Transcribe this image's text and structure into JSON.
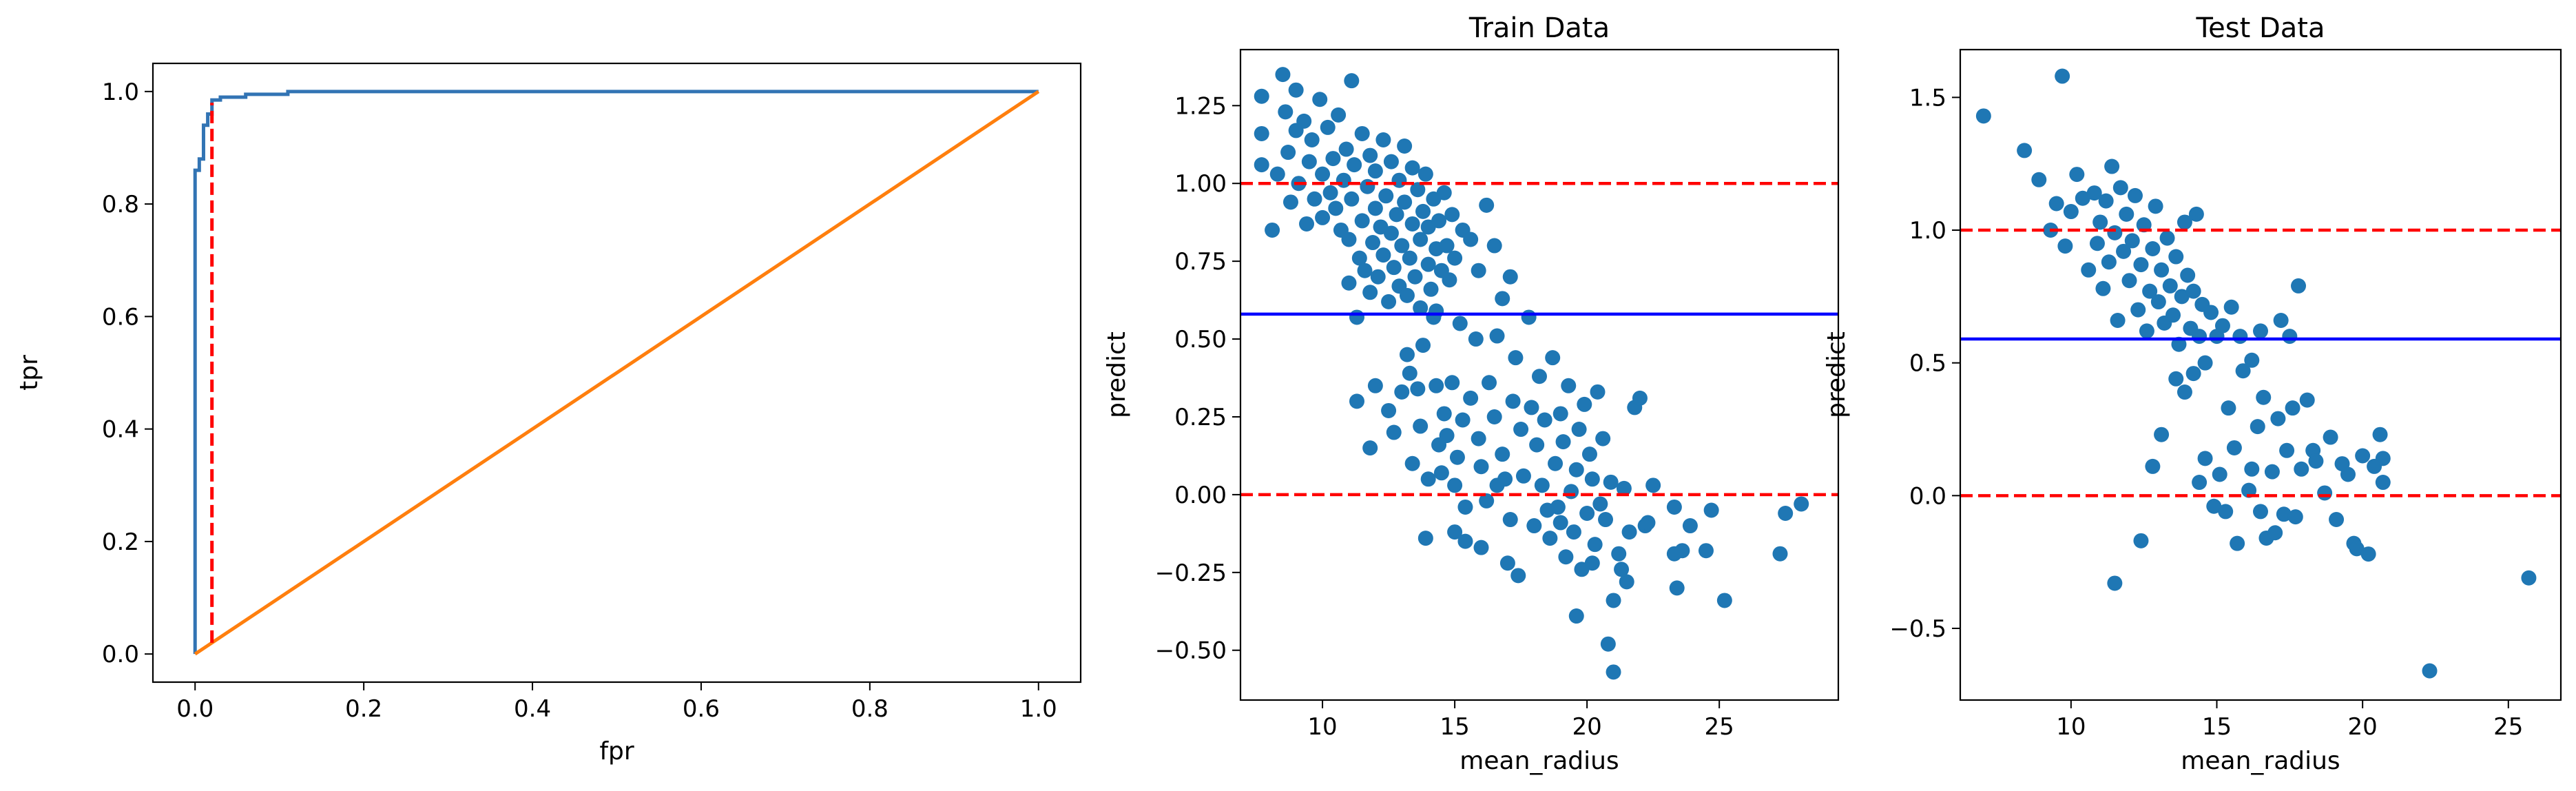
{
  "colors": {
    "roc_line": "#3274b4",
    "diagonal_line": "#ff7f0e",
    "red_dashed": "#ff0000",
    "blue_threshold": "#0000ff",
    "scatter_points": "#1f77b4"
  },
  "chart_data": [
    {
      "type": "line",
      "title": "",
      "xlabel": "fpr",
      "ylabel": "tpr",
      "xlim": [
        -0.05,
        1.05
      ],
      "ylim": [
        -0.05,
        1.05
      ],
      "xticks": [
        0.0,
        0.2,
        0.4,
        0.6,
        0.8,
        1.0
      ],
      "yticks": [
        0.0,
        0.2,
        0.4,
        0.6,
        0.8,
        1.0
      ],
      "xtick_labels": [
        "0.0",
        "0.2",
        "0.4",
        "0.6",
        "0.8",
        "1.0"
      ],
      "ytick_labels": [
        "0.0",
        "0.2",
        "0.4",
        "0.6",
        "0.8",
        "1.0"
      ],
      "grid": false,
      "series": [
        {
          "color": "#3274b4",
          "x": [
            0.0,
            0.0,
            0.005,
            0.005,
            0.01,
            0.01,
            0.015,
            0.015,
            0.02,
            0.02,
            0.03,
            0.03,
            0.06,
            0.06,
            0.11,
            0.11,
            1.0
          ],
          "y": [
            0.0,
            0.86,
            0.86,
            0.88,
            0.88,
            0.94,
            0.94,
            0.96,
            0.96,
            0.985,
            0.985,
            0.99,
            0.99,
            0.995,
            0.995,
            1.0,
            1.0
          ]
        },
        {
          "color": "#ff7f0e",
          "x": [
            0.0,
            1.0
          ],
          "y": [
            0.0,
            1.0
          ]
        }
      ],
      "annotations": [
        {
          "type": "vline",
          "style": "dashed",
          "color": "#ff0000",
          "x": 0.02,
          "y_from": 0.02,
          "y_to": 0.98
        }
      ]
    },
    {
      "type": "scatter",
      "title": "Train Data",
      "xlabel": "mean_radius",
      "ylabel": "predict",
      "xlim": [
        6.9,
        29.5
      ],
      "ylim": [
        -0.66,
        1.43
      ],
      "xticks": [
        10,
        15,
        20,
        25
      ],
      "yticks": [
        -0.5,
        -0.25,
        0.0,
        0.25,
        0.5,
        0.75,
        1.0,
        1.25
      ],
      "xtick_labels": [
        "10",
        "15",
        "20",
        "25"
      ],
      "ytick_labels": [
        "−0.50",
        "−0.25",
        "0.00",
        "0.25",
        "0.50",
        "0.75",
        "1.00",
        "1.25"
      ],
      "grid": false,
      "hlines": [
        {
          "y": 1.0,
          "style": "dashed",
          "color": "#ff0000"
        },
        {
          "y": 0.0,
          "style": "dashed",
          "color": "#ff0000"
        },
        {
          "y": 0.58,
          "style": "solid",
          "color": "#0000ff"
        }
      ],
      "points": [
        [
          7.7,
          1.28
        ],
        [
          7.7,
          1.16
        ],
        [
          7.7,
          1.06
        ],
        [
          8.1,
          0.85
        ],
        [
          8.3,
          1.03
        ],
        [
          8.5,
          1.35
        ],
        [
          8.6,
          1.23
        ],
        [
          8.7,
          1.1
        ],
        [
          8.8,
          0.94
        ],
        [
          9.0,
          1.3
        ],
        [
          9.0,
          1.17
        ],
        [
          9.1,
          1.0
        ],
        [
          9.3,
          1.2
        ],
        [
          9.4,
          0.87
        ],
        [
          9.5,
          1.07
        ],
        [
          9.6,
          1.14
        ],
        [
          9.7,
          0.95
        ],
        [
          9.9,
          1.27
        ],
        [
          10.0,
          1.03
        ],
        [
          10.0,
          0.89
        ],
        [
          10.2,
          1.18
        ],
        [
          10.3,
          0.97
        ],
        [
          10.4,
          1.08
        ],
        [
          10.5,
          0.92
        ],
        [
          10.6,
          1.22
        ],
        [
          10.7,
          0.85
        ],
        [
          10.8,
          1.01
        ],
        [
          10.9,
          1.11
        ],
        [
          11.0,
          0.82
        ],
        [
          11.0,
          0.68
        ],
        [
          11.1,
          0.95
        ],
        [
          11.1,
          1.33
        ],
        [
          11.2,
          1.06
        ],
        [
          11.3,
          0.57
        ],
        [
          11.4,
          0.76
        ],
        [
          11.5,
          0.88
        ],
        [
          11.5,
          1.16
        ],
        [
          11.6,
          0.72
        ],
        [
          11.7,
          0.99
        ],
        [
          11.8,
          1.09
        ],
        [
          11.8,
          0.65
        ],
        [
          11.9,
          0.81
        ],
        [
          12.0,
          0.92
        ],
        [
          12.0,
          1.04
        ],
        [
          12.1,
          0.7
        ],
        [
          12.2,
          0.86
        ],
        [
          12.3,
          1.14
        ],
        [
          12.3,
          0.77
        ],
        [
          12.4,
          0.96
        ],
        [
          12.5,
          0.62
        ],
        [
          12.6,
          0.84
        ],
        [
          12.6,
          1.07
        ],
        [
          12.7,
          0.73
        ],
        [
          12.8,
          0.9
        ],
        [
          12.9,
          1.01
        ],
        [
          12.9,
          0.67
        ],
        [
          13.0,
          0.8
        ],
        [
          13.1,
          1.12
        ],
        [
          13.1,
          0.94
        ],
        [
          13.2,
          0.64
        ],
        [
          13.3,
          0.76
        ],
        [
          13.4,
          1.05
        ],
        [
          13.4,
          0.87
        ],
        [
          13.5,
          0.7
        ],
        [
          13.6,
          0.98
        ],
        [
          13.7,
          0.82
        ],
        [
          13.7,
          0.6
        ],
        [
          13.8,
          0.91
        ],
        [
          13.9,
          1.03
        ],
        [
          14.0,
          0.74
        ],
        [
          14.0,
          0.86
        ],
        [
          14.1,
          0.66
        ],
        [
          14.2,
          0.95
        ],
        [
          14.3,
          0.79
        ],
        [
          14.4,
          0.88
        ],
        [
          14.5,
          0.72
        ],
        [
          14.6,
          0.97
        ],
        [
          14.7,
          0.8
        ],
        [
          14.8,
          0.69
        ],
        [
          14.9,
          0.9
        ],
        [
          15.0,
          0.76
        ],
        [
          15.3,
          0.85
        ],
        [
          15.6,
          0.82
        ],
        [
          15.9,
          0.72
        ],
        [
          16.2,
          0.93
        ],
        [
          16.5,
          0.8
        ],
        [
          16.8,
          0.63
        ],
        [
          17.1,
          0.7
        ],
        [
          11.3,
          0.3
        ],
        [
          11.8,
          0.15
        ],
        [
          12.0,
          0.35
        ],
        [
          12.5,
          0.27
        ],
        [
          12.7,
          0.2
        ],
        [
          13.0,
          0.33
        ],
        [
          13.2,
          0.45
        ],
        [
          13.3,
          0.39
        ],
        [
          13.4,
          0.1
        ],
        [
          13.6,
          0.34
        ],
        [
          13.7,
          0.22
        ],
        [
          13.8,
          0.48
        ],
        [
          14.0,
          0.05
        ],
        [
          14.2,
          0.57
        ],
        [
          14.3,
          0.35
        ],
        [
          14.4,
          0.16
        ],
        [
          14.5,
          0.07
        ],
        [
          14.6,
          0.26
        ],
        [
          14.7,
          0.19
        ],
        [
          14.9,
          0.36
        ],
        [
          15.0,
          0.03
        ],
        [
          15.1,
          0.12
        ],
        [
          15.2,
          0.55
        ],
        [
          15.3,
          0.24
        ],
        [
          15.4,
          -0.04
        ],
        [
          15.6,
          0.31
        ],
        [
          15.8,
          0.5
        ],
        [
          15.9,
          0.18
        ],
        [
          16.0,
          0.09
        ],
        [
          16.2,
          -0.02
        ],
        [
          16.3,
          0.36
        ],
        [
          16.5,
          0.25
        ],
        [
          16.6,
          0.51
        ],
        [
          16.8,
          0.13
        ],
        [
          16.9,
          0.05
        ],
        [
          17.1,
          -0.08
        ],
        [
          17.2,
          0.3
        ],
        [
          17.3,
          0.44
        ],
        [
          17.5,
          0.21
        ],
        [
          17.6,
          0.06
        ],
        [
          17.8,
          0.57
        ],
        [
          17.9,
          0.28
        ],
        [
          18.0,
          -0.1
        ],
        [
          18.1,
          0.16
        ],
        [
          18.2,
          0.38
        ],
        [
          18.3,
          0.03
        ],
        [
          18.4,
          0.24
        ],
        [
          18.6,
          -0.14
        ],
        [
          18.7,
          0.44
        ],
        [
          18.8,
          0.1
        ],
        [
          18.9,
          -0.04
        ],
        [
          19.0,
          0.26
        ],
        [
          19.1,
          0.17
        ],
        [
          19.2,
          -0.2
        ],
        [
          19.3,
          0.35
        ],
        [
          19.4,
          0.01
        ],
        [
          19.5,
          -0.12
        ],
        [
          19.6,
          0.08
        ],
        [
          19.7,
          0.21
        ],
        [
          19.8,
          -0.24
        ],
        [
          19.9,
          0.29
        ],
        [
          20.0,
          -0.06
        ],
        [
          20.1,
          0.13
        ],
        [
          20.2,
          0.05
        ],
        [
          20.3,
          -0.16
        ],
        [
          20.4,
          0.33
        ],
        [
          20.5,
          -0.03
        ],
        [
          20.6,
          0.18
        ],
        [
          20.7,
          -0.08
        ],
        [
          20.8,
          -0.48
        ],
        [
          20.9,
          0.04
        ],
        [
          21.0,
          -0.57
        ],
        [
          21.2,
          -0.19
        ],
        [
          21.4,
          0.02
        ],
        [
          21.5,
          -0.28
        ],
        [
          21.6,
          -0.12
        ],
        [
          21.8,
          0.28
        ],
        [
          22.0,
          0.31
        ],
        [
          22.2,
          -0.1
        ],
        [
          22.5,
          0.03
        ],
        [
          13.9,
          -0.14
        ],
        [
          14.3,
          0.59
        ],
        [
          15.0,
          -0.12
        ],
        [
          15.4,
          -0.15
        ],
        [
          16.0,
          -0.17
        ],
        [
          16.6,
          0.03
        ],
        [
          17.0,
          -0.22
        ],
        [
          17.4,
          -0.26
        ],
        [
          18.5,
          -0.05
        ],
        [
          19.0,
          -0.09
        ],
        [
          19.6,
          -0.39
        ],
        [
          20.2,
          -0.22
        ],
        [
          21.0,
          -0.34
        ],
        [
          21.3,
          -0.24
        ],
        [
          22.3,
          -0.09
        ],
        [
          23.3,
          -0.04
        ],
        [
          23.3,
          -0.19
        ],
        [
          23.4,
          -0.3
        ],
        [
          23.6,
          -0.18
        ],
        [
          23.9,
          -0.1
        ],
        [
          24.5,
          -0.18
        ],
        [
          24.7,
          -0.05
        ],
        [
          25.2,
          -0.34
        ],
        [
          27.3,
          -0.19
        ],
        [
          27.5,
          -0.06
        ],
        [
          28.1,
          -0.03
        ]
      ]
    },
    {
      "type": "scatter",
      "title": "Test Data",
      "xlabel": "mean_radius",
      "ylabel": "predict",
      "xlim": [
        6.2,
        26.8
      ],
      "ylim": [
        -0.77,
        1.68
      ],
      "xticks": [
        10,
        15,
        20,
        25
      ],
      "yticks": [
        -0.5,
        0.0,
        0.5,
        1.0,
        1.5
      ],
      "xtick_labels": [
        "10",
        "15",
        "20",
        "25"
      ],
      "ytick_labels": [
        "−0.5",
        "0.0",
        "0.5",
        "1.0",
        "1.5"
      ],
      "grid": false,
      "hlines": [
        {
          "y": 1.0,
          "style": "dashed",
          "color": "#ff0000"
        },
        {
          "y": 0.0,
          "style": "dashed",
          "color": "#ff0000"
        },
        {
          "y": 0.59,
          "style": "solid",
          "color": "#0000ff"
        }
      ],
      "points": [
        [
          7.0,
          1.43
        ],
        [
          8.4,
          1.3
        ],
        [
          8.9,
          1.19
        ],
        [
          9.3,
          1.0
        ],
        [
          9.5,
          1.1
        ],
        [
          9.7,
          1.58
        ],
        [
          9.8,
          0.94
        ],
        [
          10.0,
          1.07
        ],
        [
          10.2,
          1.21
        ],
        [
          10.4,
          1.12
        ],
        [
          10.6,
          0.85
        ],
        [
          10.8,
          1.14
        ],
        [
          10.9,
          0.95
        ],
        [
          11.0,
          1.03
        ],
        [
          11.1,
          0.78
        ],
        [
          11.2,
          1.11
        ],
        [
          11.3,
          0.88
        ],
        [
          11.4,
          1.24
        ],
        [
          11.5,
          0.99
        ],
        [
          11.6,
          0.66
        ],
        [
          11.7,
          1.16
        ],
        [
          11.8,
          0.92
        ],
        [
          11.9,
          1.06
        ],
        [
          12.0,
          0.81
        ],
        [
          12.1,
          0.96
        ],
        [
          12.2,
          1.13
        ],
        [
          12.3,
          0.7
        ],
        [
          12.4,
          0.87
        ],
        [
          12.5,
          1.02
        ],
        [
          12.6,
          0.62
        ],
        [
          12.7,
          0.77
        ],
        [
          12.8,
          0.93
        ],
        [
          12.9,
          1.09
        ],
        [
          13.0,
          0.73
        ],
        [
          13.1,
          0.85
        ],
        [
          13.2,
          0.65
        ],
        [
          13.3,
          0.97
        ],
        [
          13.4,
          0.79
        ],
        [
          13.5,
          0.68
        ],
        [
          13.6,
          0.9
        ],
        [
          13.7,
          0.57
        ],
        [
          13.8,
          0.75
        ],
        [
          13.9,
          1.03
        ],
        [
          14.0,
          0.83
        ],
        [
          14.1,
          0.63
        ],
        [
          14.2,
          0.77
        ],
        [
          14.3,
          1.06
        ],
        [
          14.4,
          0.6
        ],
        [
          14.5,
          0.72
        ],
        [
          14.6,
          0.5
        ],
        [
          14.8,
          0.69
        ],
        [
          15.0,
          0.6
        ],
        [
          15.2,
          0.64
        ],
        [
          15.5,
          0.71
        ],
        [
          15.8,
          0.6
        ],
        [
          16.2,
          0.51
        ],
        [
          16.5,
          0.62
        ],
        [
          17.2,
          0.66
        ],
        [
          17.5,
          0.6
        ],
        [
          17.8,
          0.79
        ],
        [
          11.5,
          -0.33
        ],
        [
          12.4,
          -0.17
        ],
        [
          12.8,
          0.11
        ],
        [
          13.1,
          0.23
        ],
        [
          13.6,
          0.44
        ],
        [
          13.9,
          0.39
        ],
        [
          14.2,
          0.46
        ],
        [
          14.4,
          0.05
        ],
        [
          14.6,
          0.14
        ],
        [
          14.9,
          -0.04
        ],
        [
          15.1,
          0.08
        ],
        [
          15.3,
          -0.06
        ],
        [
          15.4,
          0.33
        ],
        [
          15.6,
          0.18
        ],
        [
          15.7,
          -0.18
        ],
        [
          15.9,
          0.47
        ],
        [
          16.1,
          0.02
        ],
        [
          16.2,
          0.1
        ],
        [
          16.4,
          0.26
        ],
        [
          16.5,
          -0.06
        ],
        [
          16.6,
          0.37
        ],
        [
          16.7,
          -0.16
        ],
        [
          16.9,
          0.09
        ],
        [
          17.0,
          -0.14
        ],
        [
          17.1,
          0.29
        ],
        [
          17.3,
          -0.07
        ],
        [
          17.4,
          0.17
        ],
        [
          17.6,
          0.33
        ],
        [
          17.7,
          -0.08
        ],
        [
          17.9,
          0.1
        ],
        [
          18.1,
          0.36
        ],
        [
          18.3,
          0.17
        ],
        [
          18.4,
          0.13
        ],
        [
          18.7,
          0.01
        ],
        [
          18.9,
          0.22
        ],
        [
          19.1,
          -0.09
        ],
        [
          19.3,
          0.12
        ],
        [
          19.5,
          0.08
        ],
        [
          19.7,
          -0.18
        ],
        [
          19.8,
          -0.2
        ],
        [
          20.0,
          0.15
        ],
        [
          20.2,
          -0.22
        ],
        [
          20.4,
          0.11
        ],
        [
          20.6,
          0.23
        ],
        [
          20.7,
          0.05
        ],
        [
          20.7,
          0.14
        ],
        [
          22.3,
          -0.66
        ],
        [
          25.7,
          -0.31
        ]
      ]
    }
  ]
}
